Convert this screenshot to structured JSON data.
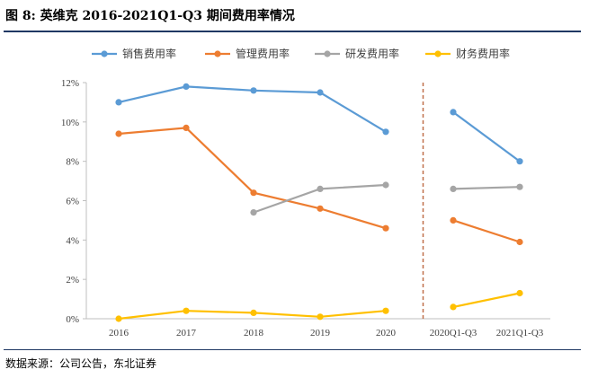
{
  "title": "图 8: 英维克 2016-2021Q1-Q3 期间费用率情况",
  "source": "数据来源：公司公告，东北证券",
  "chart_data": {
    "type": "line",
    "categories": [
      "2016",
      "2017",
      "2018",
      "2019",
      "2020",
      "2020Q1-Q3",
      "2021Q1-Q3"
    ],
    "y_ticks": [
      "0%",
      "2%",
      "4%",
      "6%",
      "8%",
      "10%",
      "12%"
    ],
    "ylim": [
      0,
      12
    ],
    "grid": false,
    "legend_position": "top",
    "divider_between": [
      "2020",
      "2020Q1-Q3"
    ],
    "divider_color": "#c0704b",
    "series": [
      {
        "name": "销售费用率",
        "color": "#5b9bd5",
        "values": [
          11.0,
          11.8,
          11.6,
          11.5,
          9.5,
          10.5,
          8.0
        ]
      },
      {
        "name": "管理费用率",
        "color": "#ed7d31",
        "values": [
          9.4,
          9.7,
          6.4,
          5.6,
          4.6,
          5.0,
          3.9
        ]
      },
      {
        "name": "研发费用率",
        "color": "#a5a5a5",
        "values": [
          null,
          null,
          5.4,
          6.6,
          6.8,
          6.6,
          6.7
        ]
      },
      {
        "name": "财务费用率",
        "color": "#ffc000",
        "values": [
          0.0,
          0.4,
          0.3,
          0.1,
          0.4,
          0.6,
          1.3
        ]
      }
    ]
  }
}
